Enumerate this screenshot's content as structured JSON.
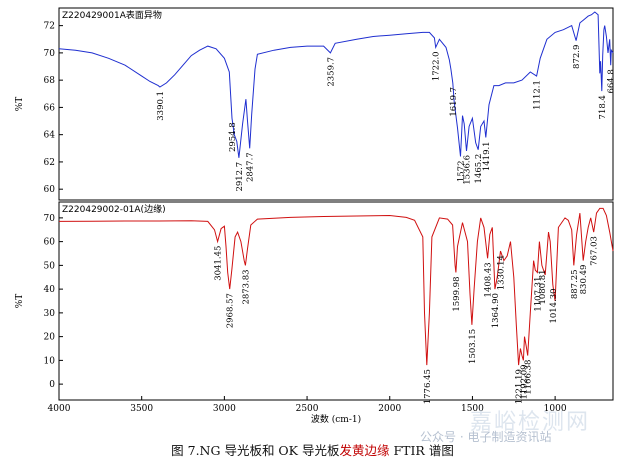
{
  "chart_data": [
    {
      "type": "line",
      "title": "Z220429001A表面异物",
      "ylabel": "%T",
      "xlim": [
        4000,
        650
      ],
      "ylim": [
        59.5,
        73
      ],
      "yticks": [
        60,
        62,
        64,
        66,
        68,
        70,
        72
      ],
      "color": "#1f2fd0",
      "series": [
        {
          "x": [
            4000,
            3900,
            3800,
            3700,
            3600,
            3500,
            3450,
            3400,
            3390,
            3350,
            3300,
            3250,
            3200,
            3150,
            3100,
            3050,
            3000,
            2970,
            2954,
            2940,
            2925,
            2912,
            2890,
            2870,
            2860,
            2847,
            2835,
            2815,
            2800,
            2700,
            2600,
            2500,
            2400,
            2359,
            2330,
            2200,
            2100,
            2000,
            1900,
            1800,
            1760,
            1730,
            1722,
            1700,
            1660,
            1640,
            1630,
            1619,
            1610,
            1590,
            1572,
            1560,
            1550,
            1536,
            1520,
            1500,
            1480,
            1465,
            1450,
            1430,
            1419,
            1400,
            1370,
            1340,
            1300,
            1250,
            1200,
            1150,
            1112,
            1090,
            1050,
            1000,
            950,
            900,
            873,
            850,
            830,
            800,
            780,
            760,
            740,
            730,
            725,
            718,
            712,
            705,
            700,
            690,
            680,
            670,
            664,
            660,
            650
          ],
          "y": [
            70.3,
            70.2,
            70.0,
            69.6,
            69.1,
            68.3,
            67.9,
            67.6,
            67.5,
            67.8,
            68.4,
            69.1,
            69.8,
            70.2,
            70.5,
            70.3,
            69.6,
            68.6,
            65.2,
            64.0,
            63.5,
            62.3,
            64.8,
            66.6,
            65.0,
            63.0,
            65.5,
            68.8,
            69.9,
            70.2,
            70.4,
            70.5,
            70.5,
            70.0,
            70.7,
            71.0,
            71.2,
            71.3,
            71.4,
            71.5,
            71.5,
            71.1,
            70.4,
            71.0,
            70.4,
            69.5,
            68.8,
            67.8,
            66.4,
            64.5,
            62.4,
            65.4,
            64.8,
            62.8,
            64.6,
            65.2,
            63.4,
            62.9,
            64.6,
            65.0,
            63.8,
            66.2,
            67.6,
            67.6,
            67.8,
            67.8,
            68.0,
            68.6,
            68.3,
            69.6,
            71.0,
            71.5,
            71.7,
            72.0,
            70.9,
            72.2,
            72.4,
            72.7,
            72.8,
            73.0,
            72.8,
            68.5,
            69.4,
            67.2,
            69.8,
            71.7,
            72.0,
            71.2,
            70.0,
            71.0,
            69.1,
            70.2,
            70.0
          ]
        }
      ],
      "annotations": [
        {
          "x": 3390,
          "label": "3390.1"
        },
        {
          "x": 2954,
          "label": "2954.8"
        },
        {
          "x": 2912,
          "label": "2912.7"
        },
        {
          "x": 2847,
          "label": "2847.7"
        },
        {
          "x": 2359,
          "label": "2359.7"
        },
        {
          "x": 1722,
          "label": "1722.0"
        },
        {
          "x": 1619,
          "label": "1619.7"
        },
        {
          "x": 1572,
          "label": "1572"
        },
        {
          "x": 1536,
          "label": "1536.6"
        },
        {
          "x": 1465,
          "label": "1465.2"
        },
        {
          "x": 1419,
          "label": "1419.1"
        },
        {
          "x": 1112,
          "label": "1112.1"
        },
        {
          "x": 873,
          "label": "872.9"
        },
        {
          "x": 718,
          "label": "718.4"
        },
        {
          "x": 664,
          "label": "664.8"
        }
      ]
    },
    {
      "type": "line",
      "title": "Z220429002-01A(边缘)",
      "ylabel": "%T",
      "xlabel": "波数 (cm-1)",
      "xlim": [
        4000,
        650
      ],
      "ylim": [
        -5,
        75
      ],
      "yticks": [
        0,
        10,
        20,
        30,
        40,
        50,
        60,
        70
      ],
      "xticks": [
        4000,
        3500,
        3000,
        2500,
        2000,
        1500,
        1000
      ],
      "color": "#d01010",
      "series": [
        {
          "x": [
            4000,
            3800,
            3600,
            3400,
            3200,
            3100,
            3060,
            3041,
            3020,
            3000,
            2990,
            2980,
            2968,
            2955,
            2935,
            2920,
            2900,
            2880,
            2873,
            2860,
            2840,
            2800,
            2600,
            2400,
            2200,
            2000,
            1900,
            1850,
            1800,
            1790,
            1776,
            1760,
            1745,
            1700,
            1650,
            1620,
            1605,
            1600,
            1590,
            1560,
            1530,
            1515,
            1503,
            1490,
            1470,
            1450,
            1430,
            1408,
            1395,
            1380,
            1364,
            1350,
            1330,
            1310,
            1290,
            1270,
            1250,
            1235,
            1221,
            1210,
            1200,
            1192,
            1185,
            1175,
            1166,
            1150,
            1130,
            1120,
            1107,
            1095,
            1080,
            1060,
            1040,
            1030,
            1014,
            1000,
            980,
            960,
            940,
            920,
            900,
            887,
            870,
            850,
            830,
            815,
            800,
            785,
            767,
            750,
            730,
            710,
            690,
            670,
            650
          ],
          "y": [
            68.5,
            68.6,
            68.7,
            68.7,
            68.8,
            68.5,
            65.0,
            60.0,
            65.5,
            66.5,
            58.0,
            47.0,
            40.0,
            48.0,
            62.0,
            64.0,
            60.0,
            52.0,
            50.0,
            57.0,
            67.0,
            69.5,
            70.2,
            70.6,
            70.8,
            71.0,
            70.2,
            69.0,
            62.0,
            30.0,
            8.0,
            30.0,
            62.0,
            70.0,
            69.5,
            67.0,
            50.0,
            47.0,
            58.0,
            68.0,
            60.0,
            38.0,
            25.0,
            40.0,
            60.0,
            70.0,
            66.0,
            53.0,
            63.0,
            66.0,
            40.0,
            45.0,
            56.0,
            52.0,
            54.0,
            60.0,
            45.0,
            25.0,
            8.0,
            15.0,
            12.0,
            10.0,
            20.0,
            16.0,
            12.0,
            30.0,
            52.0,
            48.0,
            47.0,
            60.0,
            50.0,
            46.0,
            64.0,
            60.0,
            42.0,
            35.0,
            66.0,
            68.0,
            70.0,
            69.0,
            65.0,
            50.0,
            63.0,
            72.0,
            52.0,
            60.0,
            66.0,
            70.0,
            64.0,
            72.0,
            74.0,
            74.0,
            71.0,
            64.0,
            56.0
          ]
        }
      ],
      "annotations": [
        {
          "x": 3041,
          "label": "3041.45"
        },
        {
          "x": 2968,
          "label": "2968.57"
        },
        {
          "x": 2873,
          "label": "2873.83"
        },
        {
          "x": 1776,
          "label": "1776.45"
        },
        {
          "x": 1600,
          "label": "1599.98"
        },
        {
          "x": 1503,
          "label": "1503.15"
        },
        {
          "x": 1408,
          "label": "1408.43"
        },
        {
          "x": 1364,
          "label": "1364.90"
        },
        {
          "x": 1330,
          "label": "1330.14"
        },
        {
          "x": 1221,
          "label": "1221.19"
        },
        {
          "x": 1192,
          "label": "1192.09"
        },
        {
          "x": 1166,
          "label": "1166.38"
        },
        {
          "x": 1107,
          "label": "1107.31"
        },
        {
          "x": 1080,
          "label": "1080.81"
        },
        {
          "x": 1014,
          "label": "1014.30"
        },
        {
          "x": 887,
          "label": "887.25"
        },
        {
          "x": 830,
          "label": "830.49"
        },
        {
          "x": 767,
          "label": "767.03"
        }
      ]
    }
  ],
  "caption": {
    "prefix": "图 7.NG 导光板和 OK 导光板",
    "highlight": "发黄边缘",
    "suffix": " FTIR 谱图"
  },
  "watermark": {
    "brand": "嘉峪检测网",
    "account": "公众号 · 电子制造资讯站"
  }
}
